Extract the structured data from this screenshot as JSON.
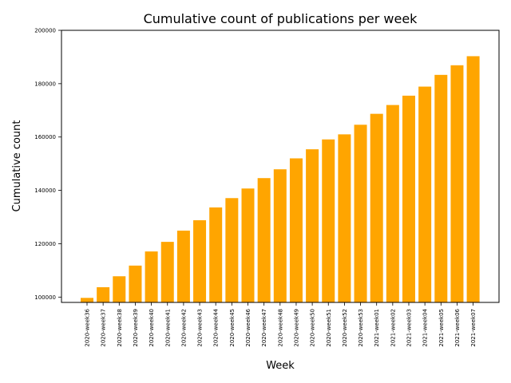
{
  "chart_data": {
    "type": "bar",
    "title": "Cumulative count of publications per week",
    "xlabel": "Week",
    "ylabel": "Cumulative count",
    "ylim": [
      98000,
      200000
    ],
    "yticks": [
      100000,
      120000,
      140000,
      160000,
      180000,
      200000
    ],
    "grid": false,
    "bar_color": "#ffa500",
    "categories": [
      "2020-week36",
      "2020-week37",
      "2020-week38",
      "2020-week39",
      "2020-week40",
      "2020-week41",
      "2020-week42",
      "2020-week43",
      "2020-week44",
      "2020-week45",
      "2020-week46",
      "2020-week47",
      "2020-week48",
      "2020-week49",
      "2020-week50",
      "2020-week51",
      "2020-week52",
      "2020-week53",
      "2021-week01",
      "2021-week02",
      "2021-week03",
      "2021-week04",
      "2021-week05",
      "2021-week06",
      "2021-week07"
    ],
    "values": [
      99700,
      103700,
      107800,
      111800,
      117100,
      120700,
      124900,
      128800,
      133600,
      137100,
      140700,
      144600,
      147900,
      152000,
      155400,
      159100,
      161000,
      164600,
      168700,
      172000,
      175500,
      178900,
      183300,
      186900,
      190300
    ]
  }
}
